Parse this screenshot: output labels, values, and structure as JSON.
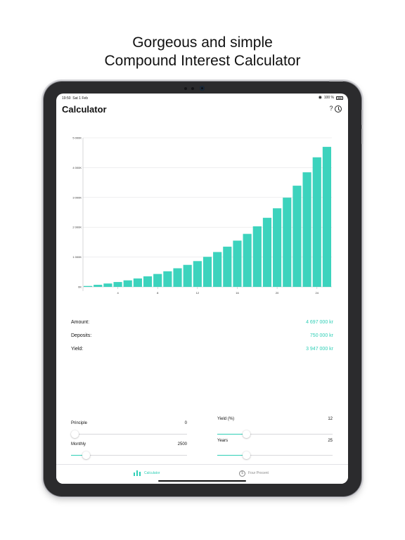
{
  "headline": {
    "line1": "Gorgeous and simple",
    "line2": "Compound Interest Calculator"
  },
  "status_bar": {
    "time": "19:50",
    "date": "Sat 1 Feb",
    "battery": "100 %",
    "wifi_icon": "wifi-icon",
    "battery_icon": "battery-icon"
  },
  "nav": {
    "title": "Calculator",
    "help_label": "?",
    "help_icon": "question-icon",
    "history_icon": "clock-history-icon"
  },
  "chart_data": {
    "type": "bar",
    "x": [
      1,
      2,
      3,
      4,
      5,
      6,
      7,
      8,
      9,
      10,
      11,
      12,
      13,
      14,
      15,
      16,
      17,
      18,
      19,
      20,
      21,
      22,
      23,
      24,
      25
    ],
    "values": [
      30,
      69,
      113,
      163,
      219,
      282,
      353,
      433,
      523,
      624,
      738,
      865,
      1008,
      1169,
      1349,
      1551,
      1778,
      2032,
      2317,
      2636,
      2993,
      3394,
      3843,
      4346,
      4697
    ],
    "xticks": [
      "4",
      "8",
      "12",
      "16",
      "20",
      "24"
    ],
    "xtick_values": [
      4,
      8,
      12,
      16,
      20,
      24
    ],
    "yticks": [
      "0K",
      "1 000K",
      "2 000K",
      "3 000K",
      "4 000K",
      "5 000K"
    ],
    "ytick_values": [
      0,
      1000,
      2000,
      3000,
      4000,
      5000
    ],
    "ylim": [
      0,
      5000
    ],
    "xlabel": "",
    "ylabel": "",
    "grid": true,
    "bar_color": "#3cd3bd"
  },
  "summary": [
    {
      "label": "Amount:",
      "value": "4 697 000 kr"
    },
    {
      "label": "Deposits:",
      "value": "750 000 kr"
    },
    {
      "label": "Yield:",
      "value": "3 947 000 kr"
    }
  ],
  "sliders": {
    "principle": {
      "label": "Principle",
      "value": "0",
      "fraction": 0.0
    },
    "monthly": {
      "label": "Monthly",
      "value": "2500",
      "fraction": 0.13
    },
    "yield": {
      "label": "Yield (%)",
      "value": "12",
      "fraction": 0.25
    },
    "years": {
      "label": "Years",
      "value": "25",
      "fraction": 0.25
    }
  },
  "tabs": [
    {
      "label": "Calculator",
      "icon": "bar-chart-icon",
      "active": true
    },
    {
      "label": "Four Procent",
      "icon": "coin-icon",
      "icon_glyph": "$",
      "active": false
    }
  ],
  "colors": {
    "accent": "#2ecfb6",
    "bar": "#3cd3bd"
  }
}
